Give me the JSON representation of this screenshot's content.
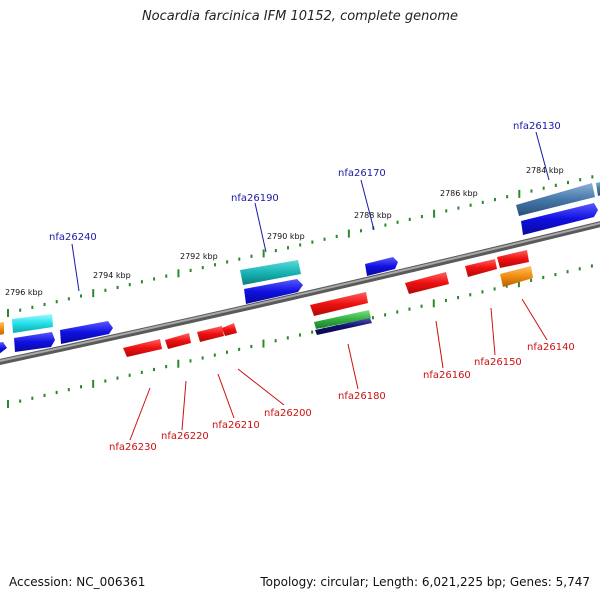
{
  "title": "Nocardia farcinica IFM 10152, complete genome",
  "accession": "Accession: NC_006361",
  "summary": "Topology: circular; Length: 6,021,225 bp; Genes: 5,747",
  "colors": {
    "backbone": "#808080",
    "tick": "#2a8a2a",
    "forward_label": "#1a1aa6",
    "reverse_label": "#cc1111",
    "blue": "#1010e0",
    "red": "#ee1010",
    "cyan": "#22e0e8",
    "teal": "#18b4b4",
    "steel": "#4678a8",
    "green": "#30b040",
    "navy": "#10106e",
    "orange": "#f08c10"
  },
  "scale_labels": [
    "2796 kbp",
    "2794 kbp",
    "2792 kbp",
    "2790 kbp",
    "2788 kbp",
    "2786 kbp",
    "2784 kbp"
  ],
  "forward_genes": [
    "nfa26240",
    "nfa26190",
    "nfa26170",
    "nfa26130"
  ],
  "reverse_genes": [
    "nfa26230",
    "nfa26220",
    "nfa26210",
    "nfa26200",
    "nfa26180",
    "nfa26160",
    "nfa26150",
    "nfa26140"
  ]
}
